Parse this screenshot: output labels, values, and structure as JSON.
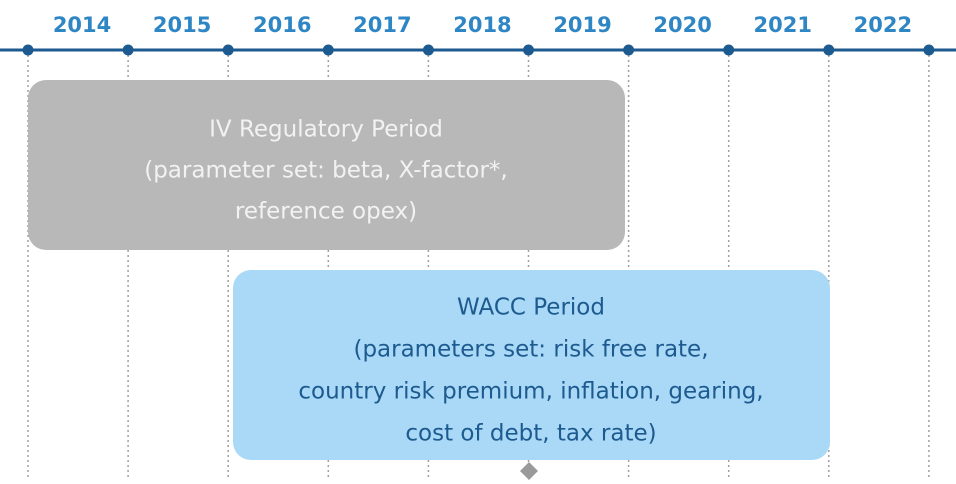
{
  "years": [
    "2014",
    "2015",
    "2016",
    "2017",
    "2018",
    "2019",
    "2020",
    "2021",
    "2022"
  ],
  "periods": [
    {
      "lines": [
        "IV Regulatory Period",
        "(parameter set: beta, X-factor*,",
        "reference opex)"
      ]
    },
    {
      "lines": [
        "WACC Period",
        "(parameters set: risk free rate,",
        "country risk premium, inflation, gearing,",
        "cost of debt, tax rate)"
      ]
    }
  ]
}
